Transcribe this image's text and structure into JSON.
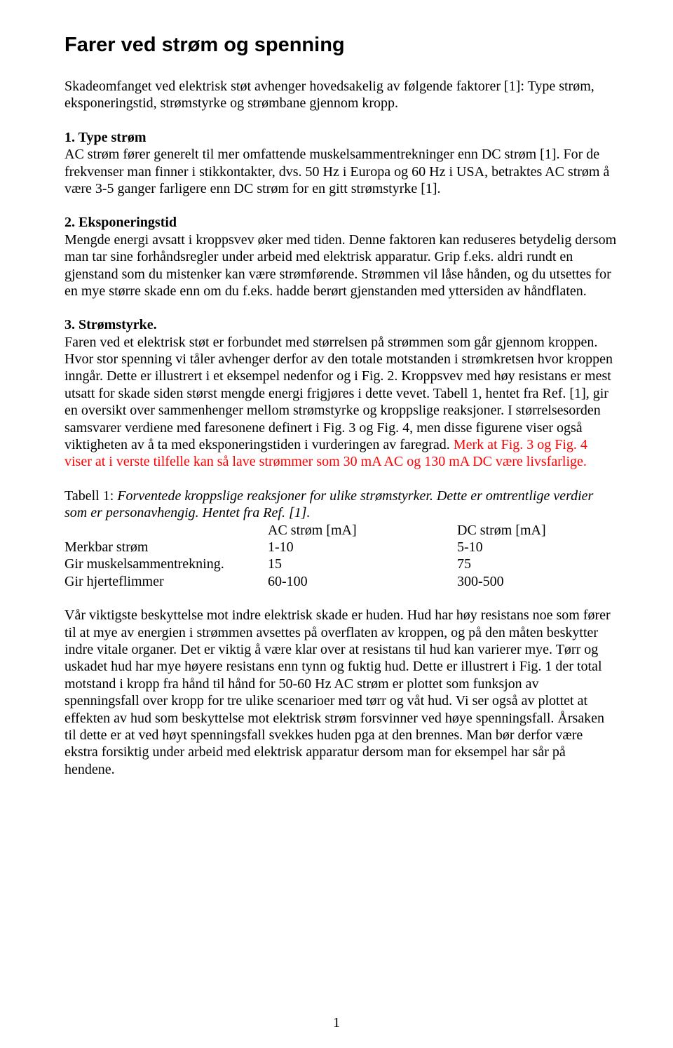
{
  "title": "Farer ved strøm og spenning",
  "intro": "Skadeomfanget ved elektrisk støt avhenger hovedsakelig av følgende faktorer [1]: Type strøm, eksponeringstid, strømstyrke og strømbane gjennom kropp.",
  "sec1": {
    "heading": "1. Type strøm",
    "body": "AC strøm fører generelt til mer omfattende muskelsammentrekninger enn DC strøm [1].  For de frekvenser man finner i stikkontakter, dvs. 50 Hz i Europa og 60 Hz i USA, betraktes AC strøm å være 3-5 ganger farligere enn DC strøm for en gitt strømstyrke [1]."
  },
  "sec2": {
    "heading": "2. Eksponeringstid",
    "body": "Mengde energi avsatt i kroppsvev øker med tiden. Denne faktoren kan reduseres betydelig dersom man tar sine forhåndsregler under arbeid med elektrisk apparatur. Grip f.eks. aldri rundt en gjenstand som du mistenker kan være strømførende. Strømmen vil låse hånden, og du utsettes for en mye større skade enn om du f.eks. hadde berørt gjenstanden med yttersiden av håndflaten."
  },
  "sec3": {
    "heading": "3. Strømstyrke.",
    "body_black": "Faren ved et elektrisk støt er forbundet med størrelsen på strømmen som går gjennom kroppen. Hvor stor spenning vi tåler avhenger derfor av den totale motstanden i strømkretsen hvor kroppen inngår. Dette er illustrert i et eksempel nedenfor og i Fig. 2. Kroppsvev med høy resistans er mest utsatt for skade siden størst mengde energi frigjøres i dette vevet. Tabell 1, hentet fra Ref. [1], gir en oversikt over sammenhenger mellom strømstyrke og kroppslige reaksjoner.  I størrelsesorden samsvarer verdiene med faresonene definert i Fig. 3 og Fig. 4, men disse figurene viser også viktigheten av å ta med eksponeringstiden i vurderingen av faregrad. ",
    "body_red": "Merk at Fig. 3 og Fig. 4 viser at i verste tilfelle kan så lave strømmer som 30 mA AC og 130 mA DC være livsfarlige."
  },
  "table": {
    "caption_prefix": "Tabell 1: ",
    "caption_italic": "Forventede kroppslige reaksjoner for ulike strømstyrker. Dette er omtrentlige verdier som er personavhengig. Hentet fra Ref. [1].",
    "headers": {
      "c1": "AC strøm [mA]",
      "c2": "DC strøm [mA]"
    },
    "rows": [
      {
        "label": "Merkbar strøm",
        "ac": "1-10",
        "dc": "5-10"
      },
      {
        "label": "Gir muskelsammentrekning.",
        "ac": "15",
        "dc": "75"
      },
      {
        "label": "Gir hjerteflimmer",
        "ac": "60-100",
        "dc": "300-500"
      }
    ]
  },
  "closing": "Vår viktigste beskyttelse mot indre elektrisk skade er huden. Hud har høy resistans noe som fører til at mye av energien i strømmen avsettes på overflaten av kroppen, og på den måten beskytter indre vitale organer. Det er viktig å være klar over at resistans til hud kan varierer mye. Tørr og uskadet hud har mye høyere resistans enn tynn og fuktig hud. Dette er illustrert i Fig. 1 der total motstand i kropp fra hånd til hånd for 50-60 Hz AC strøm er plottet som funksjon av spenningsfall over kropp for tre ulike scenarioer med tørr og våt hud. Vi ser også av plottet at effekten av hud som beskyttelse mot elektrisk strøm forsvinner ved høye spenningsfall. Årsaken til dette er at ved høyt spenningsfall svekkes huden pga at den brennes. Man bør derfor være ekstra forsiktig under arbeid med elektrisk apparatur dersom man for eksempel har sår på hendene.",
  "page_number": "1"
}
